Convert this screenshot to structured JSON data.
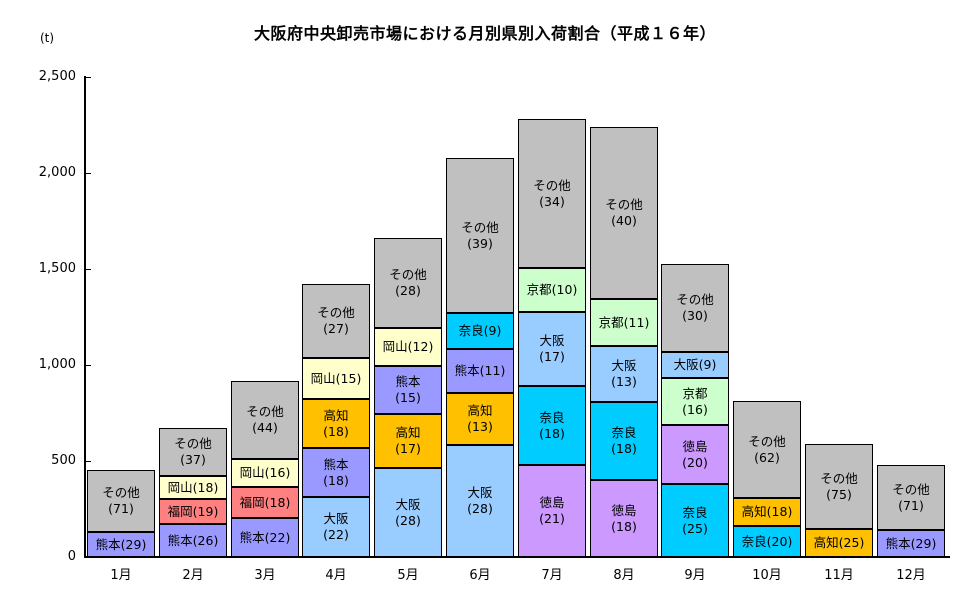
{
  "chart_data": {
    "type": "bar",
    "stacked": true,
    "title": "大阪府中央卸売市場における月別県別入荷割合（平成１６年）",
    "y_axis": {
      "unit": "(t)",
      "min": 0,
      "max": 2500,
      "tick_interval": 500,
      "tick_labels": [
        "0",
        "500",
        "1,000",
        "1,500",
        "2,000",
        "2,500"
      ]
    },
    "x_axis": {
      "categories": [
        "1月",
        "2月",
        "3月",
        "4月",
        "5月",
        "6月",
        "7月",
        "8月",
        "9月",
        "10月",
        "11月",
        "12月"
      ]
    },
    "value_note": "Each segment label shows prefecture(percentage share); bar height is total tonnes (t).",
    "series_styles": {
      "熊本": {
        "color": "#9999FF",
        "slug": "kumamoto"
      },
      "福岡": {
        "color": "#FF8080",
        "slug": "fukuoka"
      },
      "岡山": {
        "color": "#FFFFCC",
        "slug": "okayama"
      },
      "高知": {
        "color": "#FFC000",
        "slug": "kochi"
      },
      "大阪": {
        "color": "#99CCFF",
        "slug": "osaka"
      },
      "奈良": {
        "color": "#00CCFF",
        "slug": "nara"
      },
      "徳島": {
        "color": "#CC99FF",
        "slug": "tokushima"
      },
      "京都": {
        "color": "#CCFFCC",
        "slug": "kyoto"
      },
      "その他": {
        "color": "#C0C0C0",
        "slug": "other"
      }
    },
    "months": [
      {
        "label": "1月",
        "total_t": 455,
        "segments": [
          {
            "name": "熊本",
            "pct": 29,
            "two_line": false
          },
          {
            "name": "その他",
            "pct": 71,
            "two_line": true
          }
        ]
      },
      {
        "label": "2月",
        "total_t": 670,
        "segments": [
          {
            "name": "熊本",
            "pct": 26,
            "two_line": false
          },
          {
            "name": "福岡",
            "pct": 19,
            "two_line": false
          },
          {
            "name": "岡山",
            "pct": 18,
            "two_line": false
          },
          {
            "name": "その他",
            "pct": 37,
            "two_line": true
          }
        ]
      },
      {
        "label": "3月",
        "total_t": 915,
        "segments": [
          {
            "name": "熊本",
            "pct": 22,
            "two_line": false
          },
          {
            "name": "福岡",
            "pct": 18,
            "two_line": false
          },
          {
            "name": "岡山",
            "pct": 16,
            "two_line": false
          },
          {
            "name": "その他",
            "pct": 44,
            "two_line": true
          }
        ]
      },
      {
        "label": "4月",
        "total_t": 1420,
        "segments": [
          {
            "name": "大阪",
            "pct": 22,
            "two_line": true
          },
          {
            "name": "熊本",
            "pct": 18,
            "two_line": true
          },
          {
            "name": "高知",
            "pct": 18,
            "two_line": true
          },
          {
            "name": "岡山",
            "pct": 15,
            "two_line": false
          },
          {
            "name": "その他",
            "pct": 27,
            "two_line": true
          }
        ]
      },
      {
        "label": "5月",
        "total_t": 1660,
        "segments": [
          {
            "name": "大阪",
            "pct": 28,
            "two_line": true
          },
          {
            "name": "高知",
            "pct": 17,
            "two_line": true
          },
          {
            "name": "熊本",
            "pct": 15,
            "two_line": true
          },
          {
            "name": "岡山",
            "pct": 12,
            "two_line": false
          },
          {
            "name": "その他",
            "pct": 28,
            "two_line": true
          }
        ]
      },
      {
        "label": "6月",
        "total_t": 2080,
        "segments": [
          {
            "name": "大阪",
            "pct": 28,
            "two_line": true
          },
          {
            "name": "高知",
            "pct": 13,
            "two_line": true
          },
          {
            "name": "熊本",
            "pct": 11,
            "two_line": false
          },
          {
            "name": "奈良",
            "pct": 9,
            "two_line": false
          },
          {
            "name": "その他",
            "pct": 39,
            "two_line": true
          }
        ]
      },
      {
        "label": "7月",
        "total_t": 2280,
        "segments": [
          {
            "name": "徳島",
            "pct": 21,
            "two_line": true
          },
          {
            "name": "奈良",
            "pct": 18,
            "two_line": true
          },
          {
            "name": "大阪",
            "pct": 17,
            "two_line": true
          },
          {
            "name": "京都",
            "pct": 10,
            "two_line": false
          },
          {
            "name": "その他",
            "pct": 34,
            "two_line": true
          }
        ]
      },
      {
        "label": "8月",
        "total_t": 2240,
        "segments": [
          {
            "name": "徳島",
            "pct": 18,
            "two_line": true
          },
          {
            "name": "奈良",
            "pct": 18,
            "two_line": true
          },
          {
            "name": "大阪",
            "pct": 13,
            "two_line": true
          },
          {
            "name": "京都",
            "pct": 11,
            "two_line": false
          },
          {
            "name": "その他",
            "pct": 40,
            "two_line": true
          }
        ]
      },
      {
        "label": "9月",
        "total_t": 1525,
        "segments": [
          {
            "name": "奈良",
            "pct": 25,
            "two_line": true
          },
          {
            "name": "徳島",
            "pct": 20,
            "two_line": true
          },
          {
            "name": "京都",
            "pct": 16,
            "two_line": true
          },
          {
            "name": "大阪",
            "pct": 9,
            "two_line": false
          },
          {
            "name": "その他",
            "pct": 30,
            "two_line": true
          }
        ]
      },
      {
        "label": "10月",
        "total_t": 815,
        "segments": [
          {
            "name": "奈良",
            "pct": 20,
            "two_line": false
          },
          {
            "name": "高知",
            "pct": 18,
            "two_line": false
          },
          {
            "name": "その他",
            "pct": 62,
            "two_line": true
          }
        ]
      },
      {
        "label": "11月",
        "total_t": 590,
        "segments": [
          {
            "name": "高知",
            "pct": 25,
            "two_line": false
          },
          {
            "name": "その他",
            "pct": 75,
            "two_line": true
          }
        ]
      },
      {
        "label": "12月",
        "total_t": 480,
        "segments": [
          {
            "name": "熊本",
            "pct": 29,
            "two_line": false
          },
          {
            "name": "その他",
            "pct": 71,
            "two_line": true
          }
        ]
      }
    ]
  }
}
